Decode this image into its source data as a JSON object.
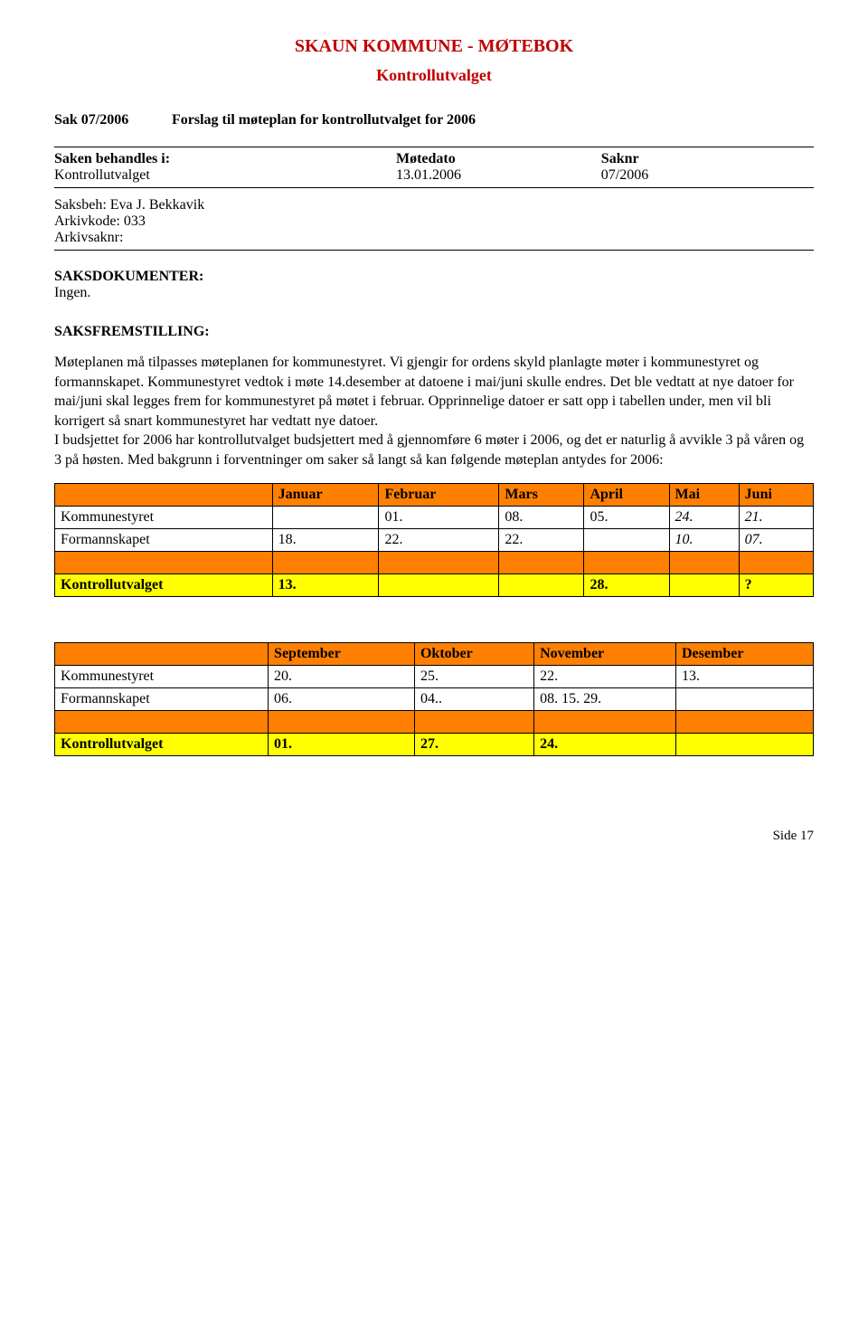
{
  "header": {
    "title": "SKAUN KOMMUNE  -  MØTEBOK",
    "subtitle": "Kontrollutvalget"
  },
  "case": {
    "sak_label": "Sak 07/2006",
    "sak_desc": "Forslag til møteplan for kontrollutvalget for 2006"
  },
  "meta": {
    "behandles_label": "Saken behandles i:",
    "motedato_label": "Møtedato",
    "saknr_label": "Saknr",
    "kontrollutvalget": "Kontrollutvalget",
    "motedato": "13.01.2006",
    "saknr": "07/2006",
    "saksbeh": "Saksbeh: Eva J. Bekkavik",
    "arkivkode": "Arkivkode: 033",
    "arkivsaknr": "Arkivsaknr:"
  },
  "sections": {
    "saksdokumenter_label": "SAKSDOKUMENTER:",
    "saksdokumenter_text": "Ingen.",
    "saksfremstilling_label": "SAKSFREMSTILLING:",
    "body": "Møteplanen må tilpasses møteplanen for kommunestyret. Vi gjengir for ordens skyld planlagte møter i kommunestyret og formannskapet. Kommunestyret vedtok i møte 14.desember at datoene i mai/juni skulle endres. Det ble vedtatt at nye datoer for mai/juni skal legges frem for kommunestyret på møtet i februar. Opprinnelige datoer er satt opp i tabellen under, men vil bli korrigert så snart kommunestyret har vedtatt nye datoer.\nI budsjettet for 2006 har kontrollutvalget budsjettert med å gjennomføre 6 møter i 2006, og det er naturlig å avvikle 3 på våren og 3 på høsten. Med bakgrunn i forventninger om saker så langt så kan følgende møteplan antydes for 2006:"
  },
  "table1": {
    "columns": [
      "",
      "Januar",
      "Februar",
      "Mars",
      "April",
      "Mai",
      "Juni"
    ],
    "rows": [
      {
        "label": "Kommunestyret",
        "vals": [
          "",
          "01.",
          "08.",
          "05.",
          "24.",
          "21."
        ],
        "italic_from": 4
      },
      {
        "label": "Formannskapet",
        "vals": [
          "18.",
          "22.",
          "22.",
          "",
          "10.",
          "07."
        ],
        "italic_from": 4
      }
    ],
    "yellow_row": {
      "label": "Kontrollutvalget",
      "vals": [
        "13.",
        "",
        "",
        "28.",
        "",
        "?"
      ]
    }
  },
  "table2": {
    "columns": [
      "",
      "September",
      "Oktober",
      "November",
      "Desember"
    ],
    "rows": [
      {
        "label": "Kommunestyret",
        "vals": [
          "20.",
          "25.",
          "22.",
          "13."
        ]
      },
      {
        "label": "Formannskapet",
        "vals": [
          "06.",
          "04..",
          "08. 15. 29.",
          ""
        ]
      }
    ],
    "yellow_row": {
      "label": "Kontrollutvalget",
      "vals": [
        "01.",
        "27.",
        "24.",
        ""
      ]
    }
  },
  "footer": {
    "page": "Side 17"
  }
}
